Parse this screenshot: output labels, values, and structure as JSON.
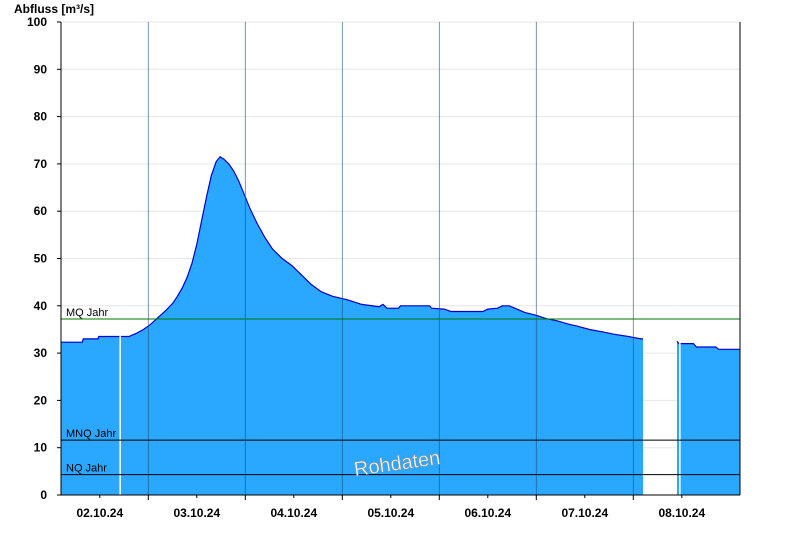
{
  "chart_data": {
    "type": "area",
    "ylabel": "Abfluss [m³/s]",
    "ylim": [
      0,
      100
    ],
    "y_ticks": [
      0,
      10,
      20,
      30,
      40,
      50,
      60,
      70,
      80,
      90,
      100
    ],
    "x_range_days": [
      1.6,
      8.6
    ],
    "x_ticks": [
      {
        "day": 2.0,
        "label": "02.10.24"
      },
      {
        "day": 3.0,
        "label": "03.10.24"
      },
      {
        "day": 4.0,
        "label": "04.10.24"
      },
      {
        "day": 5.0,
        "label": "05.10.24"
      },
      {
        "day": 6.0,
        "label": "06.10.24"
      },
      {
        "day": 7.0,
        "label": "07.10.24"
      },
      {
        "day": 8.0,
        "label": "08.10.24"
      }
    ],
    "series": [
      {
        "fill_color": "#2aa7ff",
        "line_color": "#0000cc",
        "segments": [
          [
            [
              1.6,
              32.3
            ],
            [
              1.82,
              32.3
            ],
            [
              1.83,
              33.0
            ],
            [
              1.98,
              33.0
            ],
            [
              1.99,
              33.5
            ],
            [
              2.3,
              33.5
            ],
            [
              2.38,
              34.2
            ],
            [
              2.45,
              35.0
            ],
            [
              2.52,
              36.0
            ],
            [
              2.6,
              37.5
            ],
            [
              2.68,
              39.0
            ],
            [
              2.75,
              40.5
            ],
            [
              2.8,
              42.0
            ],
            [
              2.85,
              43.8
            ],
            [
              2.9,
              46.0
            ],
            [
              2.95,
              49.0
            ],
            [
              3.0,
              53.0
            ],
            [
              3.05,
              58.0
            ],
            [
              3.1,
              63.0
            ],
            [
              3.15,
              67.5
            ],
            [
              3.2,
              70.5
            ],
            [
              3.24,
              71.5
            ],
            [
              3.28,
              71.0
            ],
            [
              3.33,
              70.0
            ],
            [
              3.38,
              68.5
            ],
            [
              3.43,
              66.5
            ],
            [
              3.48,
              64.0
            ],
            [
              3.55,
              60.5
            ],
            [
              3.62,
              57.5
            ],
            [
              3.7,
              54.5
            ],
            [
              3.78,
              52.0
            ],
            [
              3.88,
              50.0
            ],
            [
              3.98,
              48.5
            ],
            [
              4.08,
              46.5
            ],
            [
              4.18,
              44.5
            ],
            [
              4.28,
              43.0
            ],
            [
              4.4,
              42.0
            ],
            [
              4.55,
              41.3
            ],
            [
              4.7,
              40.3
            ],
            [
              4.88,
              39.8
            ],
            [
              4.92,
              40.3
            ],
            [
              4.96,
              39.5
            ],
            [
              5.08,
              39.5
            ],
            [
              5.1,
              40.0
            ],
            [
              5.4,
              40.0
            ],
            [
              5.42,
              39.5
            ],
            [
              5.55,
              39.3
            ],
            [
              5.62,
              38.8
            ],
            [
              5.95,
              38.8
            ],
            [
              6.0,
              39.3
            ],
            [
              6.1,
              39.5
            ],
            [
              6.15,
              40.0
            ],
            [
              6.22,
              40.0
            ],
            [
              6.3,
              39.3
            ],
            [
              6.38,
              38.6
            ],
            [
              6.5,
              38.0
            ],
            [
              6.6,
              37.3
            ],
            [
              6.72,
              36.8
            ],
            [
              6.82,
              36.2
            ],
            [
              6.92,
              35.7
            ],
            [
              7.05,
              35.0
            ],
            [
              7.18,
              34.5
            ],
            [
              7.3,
              34.0
            ],
            [
              7.45,
              33.5
            ],
            [
              7.58,
              33.0
            ],
            [
              7.6,
              33.0
            ]
          ],
          [
            [
              7.95,
              32.5
            ],
            [
              7.97,
              32.0
            ],
            [
              8.12,
              32.0
            ],
            [
              8.15,
              31.3
            ],
            [
              8.35,
              31.3
            ],
            [
              8.38,
              30.8
            ],
            [
              8.6,
              30.8
            ]
          ]
        ]
      }
    ],
    "reference_lines": [
      {
        "label": "MQ Jahr",
        "value": 37.2,
        "color": "#007700"
      },
      {
        "label": "MNQ Jahr",
        "value": 11.6,
        "color": "#000000"
      },
      {
        "label": "NQ Jahr",
        "value": 4.3,
        "color": "#000000"
      }
    ],
    "gaps_days": [
      2.21,
      7.98
    ],
    "watermark": "Rohdaten",
    "grid": true
  }
}
